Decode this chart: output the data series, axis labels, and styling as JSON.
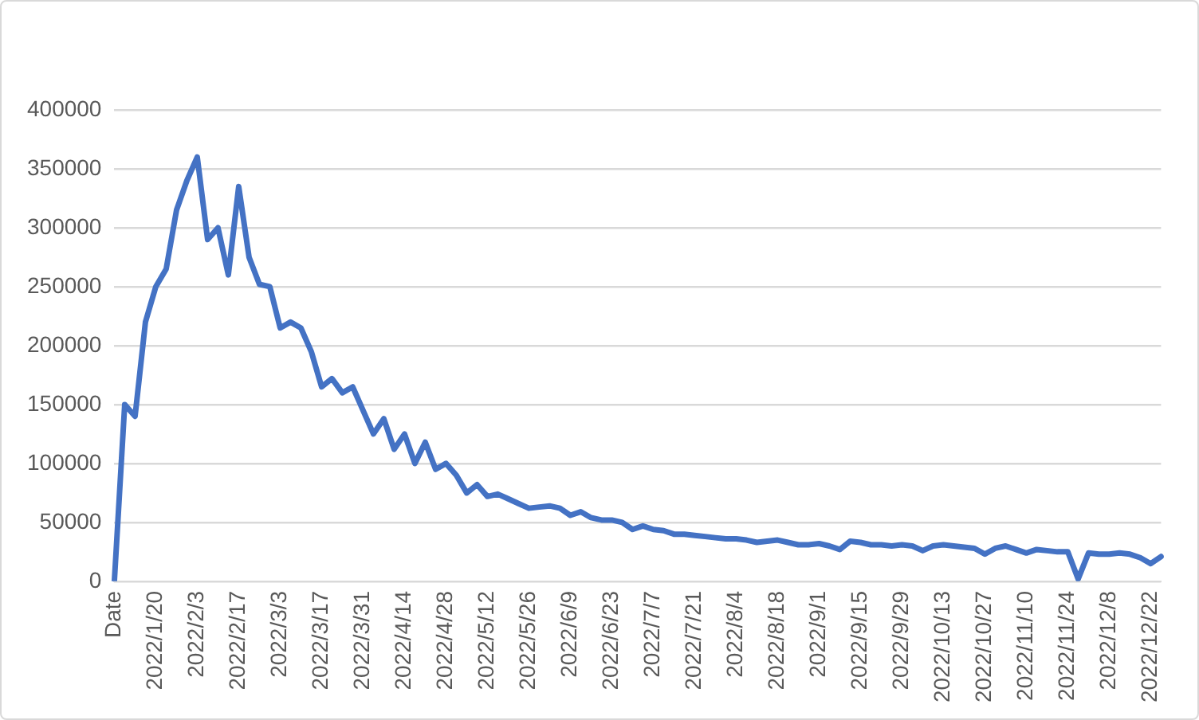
{
  "chart_data": {
    "type": "line",
    "categories": [
      "Date",
      null,
      null,
      null,
      "2022/1/20",
      null,
      null,
      null,
      "2022/2/3",
      null,
      null,
      null,
      "2022/2/17",
      null,
      null,
      null,
      "2022/3/3",
      null,
      null,
      null,
      "2022/3/17",
      null,
      null,
      null,
      "2022/3/31",
      null,
      null,
      null,
      "2022/4/14",
      null,
      null,
      null,
      "2022/4/28",
      null,
      null,
      null,
      "2022/5/12",
      null,
      null,
      null,
      "2022/5/26",
      null,
      null,
      null,
      "2022/6/9",
      null,
      null,
      null,
      "2022/6/23",
      null,
      null,
      null,
      "2022/7/7",
      null,
      null,
      null,
      "2022/7/21",
      null,
      null,
      null,
      "2022/8/4",
      null,
      null,
      null,
      "2022/8/18",
      null,
      null,
      null,
      "2022/9/1",
      null,
      null,
      null,
      "2022/9/15",
      null,
      null,
      null,
      "2022/9/29",
      null,
      null,
      null,
      "2022/10/13",
      null,
      null,
      null,
      "2022/10/27",
      null,
      null,
      null,
      "2022/11/10",
      null,
      null,
      null,
      "2022/11/24",
      null,
      null,
      null,
      "2022/12/8",
      null,
      null,
      null,
      "2022/12/22",
      null
    ],
    "series": [
      {
        "color": "#4472c4",
        "values": [
          0,
          150000,
          140000,
          220000,
          250000,
          265000,
          315000,
          340000,
          360000,
          290000,
          300000,
          260000,
          335000,
          275000,
          252000,
          250000,
          215000,
          220000,
          215000,
          195000,
          165000,
          172000,
          160000,
          165000,
          145000,
          125000,
          138000,
          112000,
          125000,
          100000,
          118000,
          95000,
          100000,
          90000,
          75000,
          82000,
          72000,
          74000,
          70000,
          66000,
          62000,
          63000,
          64000,
          62000,
          56000,
          59000,
          54000,
          52000,
          52000,
          50000,
          44000,
          47000,
          44000,
          43000,
          40000,
          40000,
          39000,
          38000,
          37000,
          36000,
          36000,
          35000,
          33000,
          34000,
          35000,
          33000,
          31000,
          31000,
          32000,
          30000,
          27000,
          34000,
          33000,
          31000,
          31000,
          30000,
          31000,
          30000,
          26000,
          30000,
          31000,
          30000,
          29000,
          28000,
          23000,
          28000,
          30000,
          27000,
          24000,
          27000,
          26000,
          25000,
          25000,
          2000,
          24000,
          23000,
          23000,
          24000,
          23000,
          20000,
          15000,
          21000
        ]
      }
    ],
    "ylim": [
      0,
      400000
    ],
    "yticks": [
      0,
      50000,
      100000,
      150000,
      200000,
      250000,
      300000,
      350000,
      400000
    ],
    "grid": "y",
    "legend": false,
    "marker": "none",
    "line_style": "solid"
  }
}
